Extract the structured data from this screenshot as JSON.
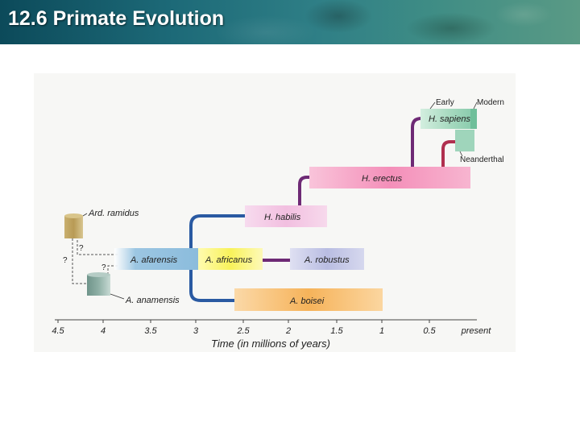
{
  "header": {
    "title": "12.6 Primate Evolution"
  },
  "diagram": {
    "x_axis_title": "Time (in millions of years)",
    "ticks": [
      "4.5",
      "4",
      "3.5",
      "3",
      "2.5",
      "2",
      "1.5",
      "1",
      "0.5",
      "present"
    ],
    "labels": {
      "ard_ramidus": "Ard. ramidus",
      "a_anamensis": "A. anamensis",
      "a_afarensis": "A. afarensis",
      "a_africanus": "A. africanus",
      "a_robustus": "A. robustus",
      "a_boisei": "A. boisei",
      "h_habilis": "H. habilis",
      "h_erectus": "H. erectus",
      "h_sapiens": "H. sapiens",
      "early": "Early",
      "modern": "Modern",
      "neanderthal": "Neanderthal",
      "question": "?"
    },
    "colors": {
      "ard_ramidus": "#b89a55",
      "a_anamensis": "#8fb0a6",
      "a_afarensis": "#9cc6e2",
      "a_africanus": "#f8f25a",
      "a_robustus": "#b9bde2",
      "a_boisei": "#f6b35a",
      "h_habilis": "#f2bfe0",
      "h_erectus": "#f48fb9",
      "h_sapiens": "#a6d9bf",
      "blue_line": "#2a5aa2",
      "purple_line": "#6e2a75",
      "crimson_line": "#b0304f"
    }
  }
}
